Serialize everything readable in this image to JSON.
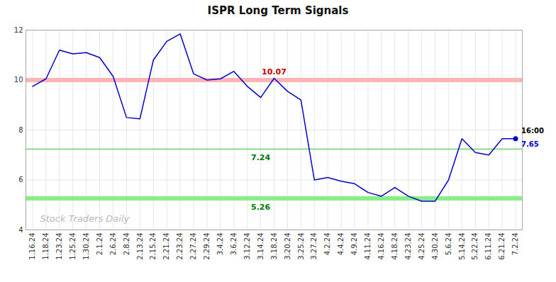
{
  "chart_data": {
    "type": "line",
    "title": "ISPR Long Term Signals",
    "categories": [
      "1.16.24",
      "1.18.24",
      "1.23.24",
      "1.25.24",
      "1.30.24",
      "2.1.24",
      "2.6.24",
      "2.8.24",
      "2.13.24",
      "2.15.24",
      "2.21.24",
      "2.23.24",
      "2.27.24",
      "2.29.24",
      "3.4.24",
      "3.6.24",
      "3.12.24",
      "3.14.24",
      "3.18.24",
      "3.20.24",
      "3.25.24",
      "3.27.24",
      "4.2.24",
      "4.4.24",
      "4.9.24",
      "4.11.24",
      "4.16.24",
      "4.18.24",
      "4.23.24",
      "4.25.24",
      "4.30.24",
      "5.6.24",
      "5.14.24",
      "5.22.24",
      "6.11.24",
      "6.21.24",
      "7.2.24"
    ],
    "values": [
      9.75,
      10.05,
      11.2,
      11.05,
      11.1,
      10.9,
      10.15,
      8.5,
      8.45,
      10.8,
      11.55,
      11.85,
      10.25,
      10.0,
      10.05,
      10.35,
      9.75,
      9.3,
      10.07,
      9.55,
      9.2,
      6.0,
      6.1,
      5.95,
      5.85,
      5.5,
      5.35,
      5.7,
      5.35,
      5.15,
      5.15,
      6.0,
      7.65,
      7.1,
      7.0,
      7.65,
      7.65
    ],
    "color": "#0000cc",
    "ylim": [
      4,
      12
    ],
    "yticks": [
      4,
      6,
      8,
      10,
      12
    ],
    "grid": true,
    "reference_lines": [
      {
        "value": 10.0,
        "color": "#ffb3b3",
        "line_style": "band"
      },
      {
        "value": 7.24,
        "color": "#44cc44",
        "line_style": "solid"
      },
      {
        "value": 5.26,
        "color": "#88ee88",
        "line_style": "band"
      }
    ],
    "annotations": [
      {
        "text": "10.07",
        "category": "3.18.24",
        "value": 10.07,
        "color": "#cc0000"
      },
      {
        "text": "7.24",
        "category": "3.14.24",
        "value": 7.24,
        "color": "#007700"
      },
      {
        "text": "5.26",
        "category": "3.14.24",
        "value": 5.26,
        "color": "#007700"
      },
      {
        "text": "16:00",
        "category": "7.2.24",
        "value": 7.65,
        "color": "black"
      },
      {
        "text": "7.65",
        "category": "7.2.24",
        "value": 7.65,
        "color": "#0000cc"
      }
    ],
    "watermark": "Stock Traders Daily"
  }
}
